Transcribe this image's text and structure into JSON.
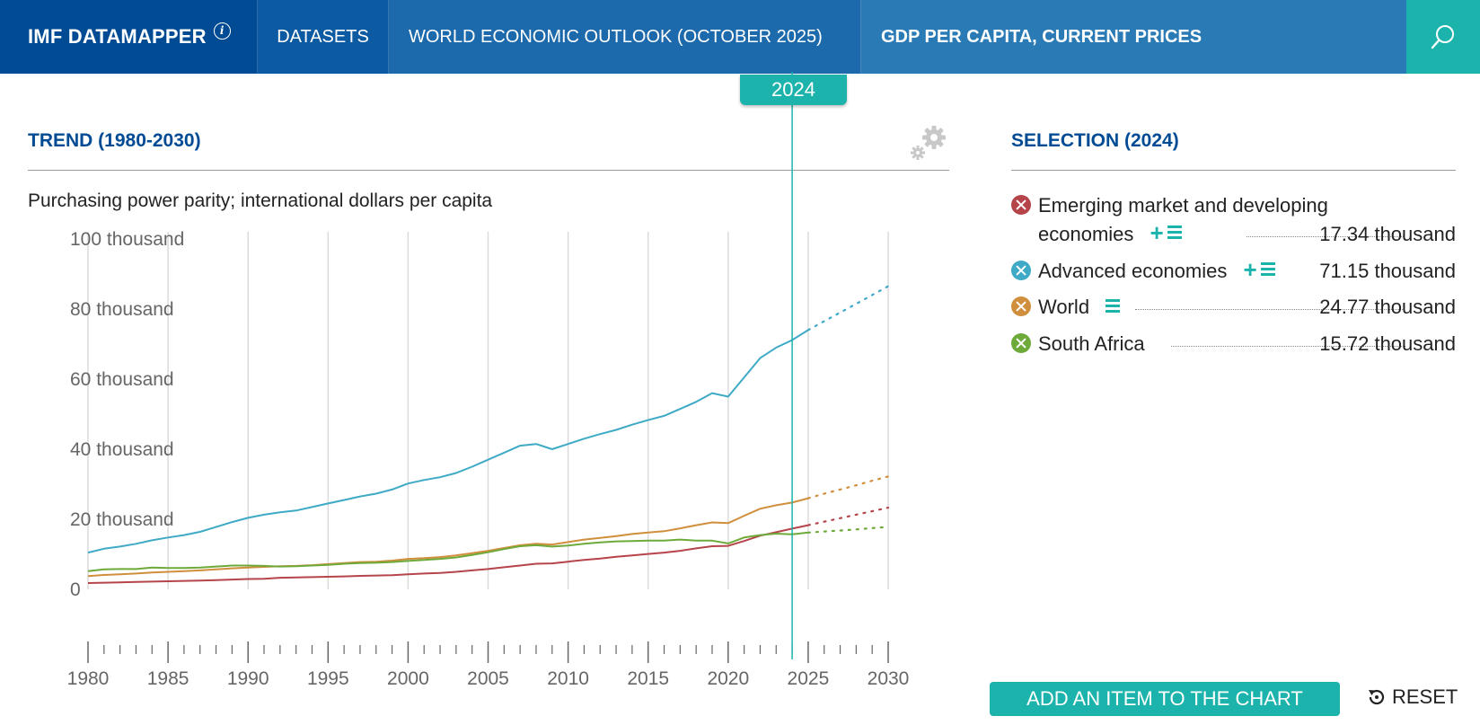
{
  "header": {
    "brand": "IMF DATAMAPPER",
    "brand_info_icon": "info-icon",
    "nav_datasets": "DATASETS",
    "nav_dataset_name": "WORLD ECONOMIC OUTLOOK (OCTOBER 2025)",
    "nav_indicator": "GDP PER CAPITA, CURRENT PRICES",
    "search_icon": "search-icon",
    "colors": {
      "brand": "#004b93",
      "accent": "#1bb3ac"
    }
  },
  "chart_panel": {
    "title": "TREND (1980-2030)",
    "subtitle": "Purchasing power parity; international dollars per capita",
    "selected_year": "2024",
    "settings_icon": "gear-icon"
  },
  "selection": {
    "title": "SELECTION (2024)",
    "items": [
      {
        "name_line1": "Emerging market and developing",
        "name_line2": "economies",
        "value": "17.34 thousand",
        "color": "#b5444b",
        "tools": [
          "plus-icon",
          "list-icon"
        ]
      },
      {
        "name": "Advanced economies",
        "value": "71.15 thousand",
        "color": "#3eaac6",
        "tools": [
          "plus-icon",
          "list-icon"
        ]
      },
      {
        "name": "World",
        "value": "24.77 thousand",
        "color": "#d08f3c",
        "tools": [
          "list-icon"
        ]
      },
      {
        "name": "South Africa",
        "value": "15.72 thousand",
        "color": "#6eaa3a",
        "tools": []
      }
    ]
  },
  "buttons": {
    "add_item": "ADD AN ITEM TO THE CHART",
    "reset": "RESET",
    "reset_icon": "reset-icon"
  },
  "chart_data": {
    "type": "line",
    "title": "TREND (1980-2030)",
    "ylabel": "Purchasing power parity; international dollars per capita",
    "ylim": [
      0,
      100000
    ],
    "yticks": [
      0,
      20000,
      40000,
      60000,
      80000,
      100000
    ],
    "ytick_labels": [
      "0",
      "20 thousand",
      "40 thousand",
      "60 thousand",
      "80 thousand",
      "100 thousand"
    ],
    "xlim": [
      1980,
      2030
    ],
    "xticks": [
      1980,
      1985,
      1990,
      1995,
      2000,
      2005,
      2010,
      2015,
      2020,
      2025,
      2030
    ],
    "highlight_year": 2024,
    "projection_start": 2025,
    "grid": "vertical",
    "x": [
      1980,
      1981,
      1982,
      1983,
      1984,
      1985,
      1986,
      1987,
      1988,
      1989,
      1990,
      1991,
      1992,
      1993,
      1994,
      1995,
      1996,
      1997,
      1998,
      1999,
      2000,
      2001,
      2002,
      2003,
      2004,
      2005,
      2006,
      2007,
      2008,
      2009,
      2010,
      2011,
      2012,
      2013,
      2014,
      2015,
      2016,
      2017,
      2018,
      2019,
      2020,
      2021,
      2022,
      2023,
      2024,
      2025,
      2026,
      2027,
      2028,
      2029,
      2030
    ],
    "series": [
      {
        "name": "Advanced economies",
        "color": "#3eaac6",
        "values": [
          10500,
          11600,
          12200,
          13000,
          14000,
          14800,
          15500,
          16400,
          17800,
          19200,
          20400,
          21300,
          22000,
          22500,
          23500,
          24500,
          25500,
          26500,
          27300,
          28500,
          30200,
          31200,
          32000,
          33200,
          35000,
          37000,
          39000,
          41000,
          41500,
          40000,
          41500,
          43000,
          44300,
          45500,
          47000,
          48300,
          49500,
          51500,
          53500,
          56000,
          55000,
          60500,
          66000,
          69000,
          71150,
          74000,
          76500,
          79000,
          81500,
          84000,
          86500
        ]
      },
      {
        "name": "World",
        "color": "#d08f3c",
        "values": [
          3800,
          4100,
          4300,
          4500,
          4800,
          5000,
          5200,
          5400,
          5700,
          6000,
          6200,
          6400,
          6600,
          6700,
          6900,
          7200,
          7500,
          7800,
          7900,
          8200,
          8700,
          8900,
          9200,
          9700,
          10300,
          11000,
          11800,
          12600,
          13000,
          12800,
          13500,
          14200,
          14700,
          15200,
          15800,
          16200,
          16600,
          17400,
          18300,
          19100,
          18900,
          21000,
          23000,
          24000,
          24770,
          26000,
          27300,
          28500,
          29700,
          31000,
          32200
        ]
      },
      {
        "name": "Emerging market and developing economies",
        "color": "#b5444b",
        "values": [
          1800,
          1900,
          2000,
          2100,
          2200,
          2300,
          2400,
          2500,
          2650,
          2800,
          2950,
          3000,
          3300,
          3400,
          3500,
          3600,
          3700,
          3850,
          3950,
          4050,
          4300,
          4500,
          4700,
          5000,
          5400,
          5800,
          6300,
          6800,
          7300,
          7400,
          7900,
          8400,
          8800,
          9300,
          9700,
          10100,
          10500,
          11000,
          11700,
          12300,
          12400,
          13800,
          15300,
          16300,
          17340,
          18300,
          19300,
          20300,
          21300,
          22300,
          23300
        ]
      },
      {
        "name": "South Africa",
        "color": "#6eaa3a",
        "values": [
          5200,
          5700,
          5800,
          5800,
          6200,
          6100,
          6100,
          6200,
          6500,
          6800,
          6800,
          6700,
          6500,
          6600,
          6800,
          7000,
          7300,
          7500,
          7600,
          7800,
          8100,
          8400,
          8700,
          9100,
          9800,
          10600,
          11500,
          12300,
          12600,
          12200,
          12500,
          13000,
          13400,
          13700,
          13800,
          13900,
          13900,
          14200,
          13900,
          13900,
          13100,
          14800,
          15500,
          15900,
          15720,
          16200,
          16500,
          16800,
          17100,
          17500,
          17800
        ]
      }
    ]
  }
}
